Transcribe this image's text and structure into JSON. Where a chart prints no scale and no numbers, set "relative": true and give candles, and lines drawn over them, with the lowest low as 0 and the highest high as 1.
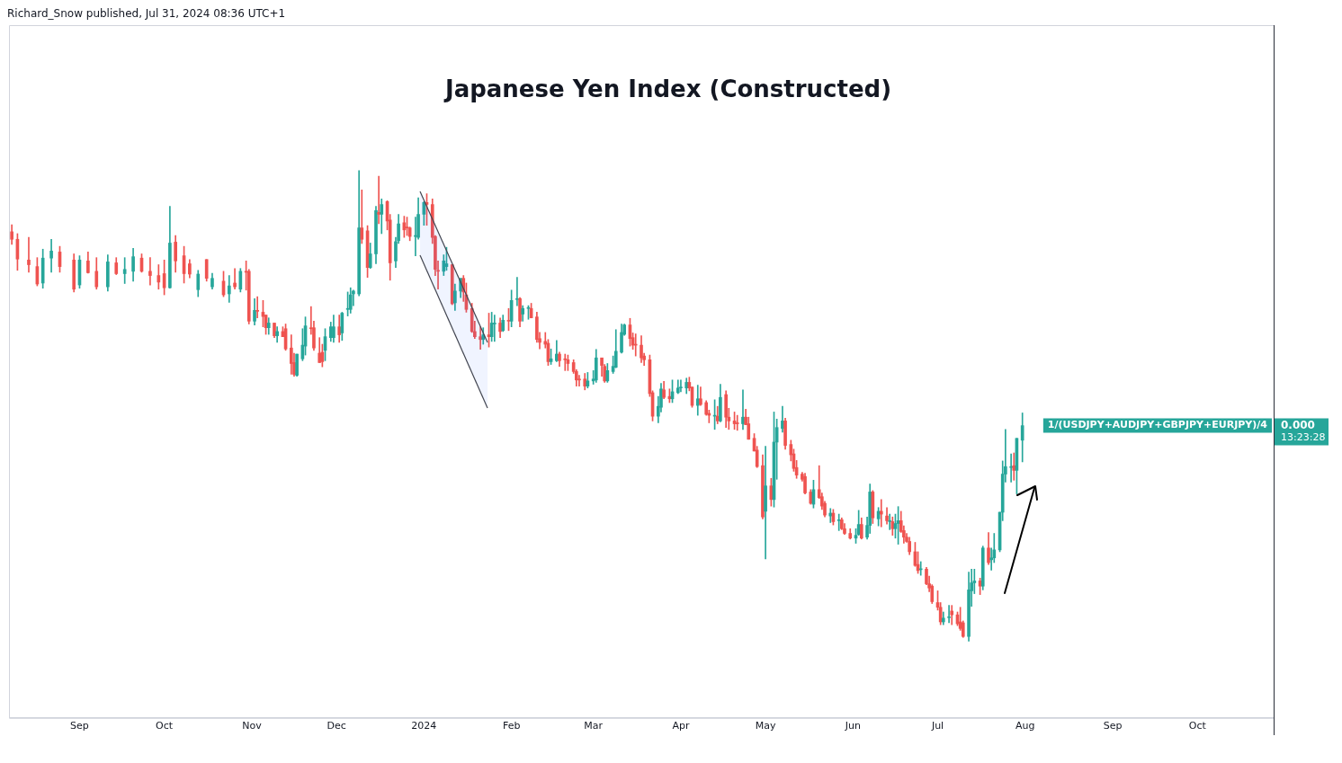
{
  "chart_data": {
    "type": "candlestick",
    "title": "Japanese Yen Index (Constructed)",
    "relative": true,
    "annotations": [
      "Richard_Snow published, Jul 31, 2024 08:36 UTC+1",
      "0.000",
      "13:23:28"
    ],
    "xlim": [
      "2023-08-07",
      "2024-10-28"
    ],
    "xticks": [
      {
        "value": "2023-09-01",
        "label": "Sep"
      },
      {
        "value": "2023-10-01",
        "label": "Oct"
      },
      {
        "value": "2023-11-01",
        "label": "Nov"
      },
      {
        "value": "2023-12-01",
        "label": "Dec"
      },
      {
        "value": "2024-01-01",
        "label": "2024"
      },
      {
        "value": "2024-02-01",
        "label": "Feb"
      },
      {
        "value": "2024-03-01",
        "label": "Mar"
      },
      {
        "value": "2024-04-01",
        "label": "Apr"
      },
      {
        "value": "2024-05-01",
        "label": "May"
      },
      {
        "value": "2024-06-01",
        "label": "Jun"
      },
      {
        "value": "2024-07-01",
        "label": "Jul"
      },
      {
        "value": "2024-08-01",
        "label": "Aug"
      },
      {
        "value": "2024-09-01",
        "label": "Sep"
      },
      {
        "value": "2024-10-01",
        "label": "Oct"
      }
    ],
    "x": [
      "2023-08-08",
      "2023-08-10",
      "2023-08-14",
      "2023-08-17",
      "2023-08-19",
      "2023-08-22",
      "2023-08-25",
      "2023-08-30",
      "2023-09-01",
      "2023-09-04",
      "2023-09-07",
      "2023-09-11",
      "2023-09-14",
      "2023-09-17",
      "2023-09-20",
      "2023-09-23",
      "2023-09-26",
      "2023-09-29",
      "2023-10-01",
      "2023-10-03",
      "2023-10-05",
      "2023-10-08",
      "2023-10-10",
      "2023-10-13",
      "2023-10-16",
      "2023-10-18",
      "2023-10-22",
      "2023-10-24",
      "2023-10-26",
      "2023-10-28",
      "2023-10-30",
      "2023-10-31",
      "2023-11-02",
      "2023-11-03",
      "2023-11-05",
      "2023-11-06",
      "2023-11-07",
      "2023-11-09",
      "2023-11-10",
      "2023-11-12",
      "2023-11-13",
      "2023-11-15",
      "2023-11-16",
      "2023-11-17",
      "2023-11-19",
      "2023-11-20",
      "2023-11-22",
      "2023-11-23",
      "2023-11-25",
      "2023-11-26",
      "2023-11-27",
      "2023-11-29",
      "2023-11-30",
      "2023-12-02",
      "2023-12-03",
      "2023-12-05",
      "2023-12-06",
      "2023-12-07",
      "2023-12-09",
      "2023-12-10",
      "2023-12-12",
      "2023-12-13",
      "2023-12-15",
      "2023-12-16",
      "2023-12-17",
      "2023-12-19",
      "2023-12-20",
      "2023-12-22",
      "2023-12-23",
      "2023-12-25",
      "2023-12-26",
      "2023-12-27",
      "2023-12-29",
      "2023-12-30",
      "2024-01-01",
      "2024-01-02",
      "2024-01-04",
      "2024-01-05",
      "2024-01-06",
      "2024-01-08",
      "2024-01-09",
      "2024-01-11",
      "2024-01-12",
      "2024-01-14",
      "2024-01-15",
      "2024-01-16",
      "2024-01-18",
      "2024-01-19",
      "2024-01-21",
      "2024-01-22",
      "2024-01-24",
      "2024-01-25",
      "2024-01-26",
      "2024-01-28",
      "2024-01-29",
      "2024-01-31",
      "2024-02-01",
      "2024-02-03",
      "2024-02-04",
      "2024-02-05",
      "2024-02-07",
      "2024-02-08",
      "2024-02-10",
      "2024-02-11",
      "2024-02-13",
      "2024-02-14",
      "2024-02-15",
      "2024-02-17",
      "2024-02-18",
      "2024-02-20",
      "2024-02-21",
      "2024-02-23",
      "2024-02-24",
      "2024-02-25",
      "2024-02-27",
      "2024-02-28",
      "2024-03-01",
      "2024-03-02",
      "2024-03-04",
      "2024-03-05",
      "2024-03-06",
      "2024-03-08",
      "2024-03-09",
      "2024-03-11",
      "2024-03-12",
      "2024-03-14",
      "2024-03-15",
      "2024-03-16",
      "2024-03-18",
      "2024-03-19",
      "2024-03-21",
      "2024-03-22",
      "2024-03-24",
      "2024-03-25",
      "2024-03-26",
      "2024-03-28",
      "2024-03-29",
      "2024-03-31",
      "2024-04-01",
      "2024-04-03",
      "2024-04-04",
      "2024-04-05",
      "2024-04-07",
      "2024-04-08",
      "2024-04-10",
      "2024-04-11",
      "2024-04-13",
      "2024-04-14",
      "2024-04-15",
      "2024-04-17",
      "2024-04-18",
      "2024-04-20",
      "2024-04-21",
      "2024-04-23",
      "2024-04-24",
      "2024-04-25",
      "2024-04-27",
      "2024-04-28",
      "2024-04-30",
      "2024-05-01",
      "2024-05-03",
      "2024-05-04",
      "2024-05-05",
      "2024-05-07",
      "2024-05-08",
      "2024-05-10",
      "2024-05-11",
      "2024-05-12",
      "2024-05-14",
      "2024-05-15",
      "2024-05-17",
      "2024-05-18",
      "2024-05-20",
      "2024-05-21",
      "2024-05-22",
      "2024-05-24",
      "2024-05-25",
      "2024-05-27",
      "2024-05-28",
      "2024-05-29",
      "2024-05-31",
      "2024-06-02",
      "2024-06-03",
      "2024-06-04",
      "2024-06-06",
      "2024-06-07",
      "2024-06-08",
      "2024-06-10",
      "2024-06-11",
      "2024-06-13",
      "2024-06-14",
      "2024-06-15",
      "2024-06-16",
      "2024-06-17",
      "2024-06-18",
      "2024-06-19",
      "2024-06-20",
      "2024-06-21",
      "2024-06-23",
      "2024-06-24",
      "2024-06-25",
      "2024-06-27",
      "2024-06-28",
      "2024-06-29",
      "2024-07-01",
      "2024-07-02",
      "2024-07-03",
      "2024-07-05",
      "2024-07-06",
      "2024-07-08",
      "2024-07-09",
      "2024-07-10",
      "2024-07-12",
      "2024-07-13",
      "2024-07-14",
      "2024-07-16",
      "2024-07-17",
      "2024-07-19",
      "2024-07-20",
      "2024-07-21",
      "2024-07-23",
      "2024-07-24",
      "2024-07-25",
      "2024-07-27",
      "2024-07-28",
      "2024-07-29",
      "2024-07-31"
    ],
    "series": [
      {
        "name": "1/(USDJPY+AUDJPY+GBPJPY+EURJPY)/4",
        "ohlc": [
          [
            0.87,
            0.885,
            0.843,
            0.854
          ],
          [
            0.854,
            0.866,
            0.788,
            0.812
          ],
          [
            0.81,
            0.858,
            0.784,
            0.8
          ],
          [
            0.796,
            0.815,
            0.755,
            0.759
          ],
          [
            0.761,
            0.833,
            0.75,
            0.814
          ],
          [
            0.814,
            0.854,
            0.784,
            0.829
          ],
          [
            0.827,
            0.839,
            0.784,
            0.796
          ],
          [
            0.81,
            0.823,
            0.742,
            0.748
          ],
          [
            0.757,
            0.819,
            0.75,
            0.81
          ],
          [
            0.808,
            0.827,
            0.782,
            0.783
          ],
          [
            0.786,
            0.815,
            0.748,
            0.753
          ],
          [
            0.753,
            0.821,
            0.744,
            0.806
          ],
          [
            0.804,
            0.815,
            0.779,
            0.781
          ],
          [
            0.781,
            0.815,
            0.76,
            0.79
          ],
          [
            0.786,
            0.835,
            0.765,
            0.817
          ],
          [
            0.814,
            0.823,
            0.784,
            0.786
          ],
          [
            0.786,
            0.815,
            0.757,
            0.777
          ],
          [
            0.777,
            0.8,
            0.748,
            0.763
          ],
          [
            0.781,
            0.81,
            0.736,
            0.751
          ],
          [
            0.751,
            0.924,
            0.75,
            0.846
          ],
          [
            0.848,
            0.862,
            0.784,
            0.808
          ],
          [
            0.819,
            0.839,
            0.761,
            0.781
          ],
          [
            0.802,
            0.811,
            0.772,
            0.78
          ],
          [
            0.747,
            0.788,
            0.732,
            0.78
          ],
          [
            0.811,
            0.811,
            0.765,
            0.771
          ],
          [
            0.753,
            0.782,
            0.748,
            0.771
          ],
          [
            0.765,
            0.786,
            0.732,
            0.736
          ],
          [
            0.738,
            0.777,
            0.72,
            0.755
          ],
          [
            0.761,
            0.792,
            0.748,
            0.753
          ],
          [
            0.748,
            0.792,
            0.742,
            0.786
          ],
          [
            0.786,
            0.808,
            0.746,
            0.784
          ],
          [
            0.786,
            0.79,
            0.674,
            0.68
          ],
          [
            0.68,
            0.728,
            0.672,
            0.703
          ],
          [
            0.703,
            0.732,
            0.687,
            0.701
          ],
          [
            0.699,
            0.724,
            0.668,
            0.69
          ],
          [
            0.693,
            0.693,
            0.652,
            0.666
          ],
          [
            0.666,
            0.687,
            0.652,
            0.676
          ],
          [
            0.676,
            0.676,
            0.645,
            0.649
          ],
          [
            0.649,
            0.668,
            0.635,
            0.658
          ],
          [
            0.658,
            0.668,
            0.647,
            0.647
          ],
          [
            0.664,
            0.674,
            0.618,
            0.621
          ],
          [
            0.623,
            0.651,
            0.567,
            0.59
          ],
          [
            0.592,
            0.612,
            0.563,
            0.567
          ],
          [
            0.565,
            0.61,
            0.563,
            0.61
          ],
          [
            0.6,
            0.664,
            0.596,
            0.629
          ],
          [
            0.627,
            0.689,
            0.608,
            0.67
          ],
          [
            0.666,
            0.711,
            0.652,
            0.664
          ],
          [
            0.666,
            0.68,
            0.618,
            0.623
          ],
          [
            0.612,
            0.645,
            0.592,
            0.592
          ],
          [
            0.614,
            0.631,
            0.583,
            0.594
          ],
          [
            0.618,
            0.664,
            0.596,
            0.647
          ],
          [
            0.645,
            0.678,
            0.637,
            0.668
          ],
          [
            0.645,
            0.693,
            0.635,
            0.668
          ],
          [
            0.668,
            0.693,
            0.635,
            0.651
          ],
          [
            0.655,
            0.699,
            0.639,
            0.697
          ],
          [
            0.705,
            0.742,
            0.691,
            0.707
          ],
          [
            0.705,
            0.751,
            0.697,
            0.736
          ],
          [
            0.738,
            0.746,
            0.713,
            0.744
          ],
          [
            0.738,
            1.0,
            0.734,
            0.878
          ],
          [
            0.878,
            0.959,
            0.845,
            0.854
          ],
          [
            0.872,
            0.883,
            0.773,
            0.794
          ],
          [
            0.794,
            0.846,
            0.792,
            0.823
          ],
          [
            0.823,
            0.924,
            0.802,
            0.915
          ],
          [
            0.911,
            0.988,
            0.887,
            0.907
          ],
          [
            0.907,
            0.94,
            0.866,
            0.928
          ],
          [
            0.934,
            0.936,
            0.874,
            0.893
          ],
          [
            0.895,
            0.907,
            0.767,
            0.804
          ],
          [
            0.808,
            0.858,
            0.794,
            0.849
          ],
          [
            0.851,
            0.907,
            0.845,
            0.887
          ],
          [
            0.889,
            0.903,
            0.858,
            0.874
          ],
          [
            0.88,
            0.901,
            0.862,
            0.878
          ],
          [
            0.878,
            0.88,
            0.851,
            0.86
          ],
          [
            0.86,
            0.901,
            0.819,
            0.862
          ],
          [
            0.858,
            0.942,
            0.854,
            0.907
          ],
          [
            0.907,
            0.934,
            0.884,
            0.932
          ],
          [
            0.932,
            0.951,
            0.884,
            0.928
          ],
          [
            0.928,
            0.94,
            0.845,
            0.858
          ],
          [
            0.86,
            0.862,
            0.777,
            0.79
          ],
          [
            0.788,
            0.808,
            0.748,
            0.786
          ],
          [
            0.786,
            0.821,
            0.777,
            0.808
          ],
          [
            0.796,
            0.837,
            0.788,
            0.802
          ],
          [
            0.8,
            0.8,
            0.715,
            0.717
          ],
          [
            0.719,
            0.759,
            0.703,
            0.744
          ],
          [
            0.744,
            0.771,
            0.73,
            0.771
          ],
          [
            0.771,
            0.777,
            0.722,
            0.742
          ],
          [
            0.736,
            0.761,
            0.699,
            0.705
          ],
          [
            0.707,
            0.718,
            0.656,
            0.658
          ],
          [
            0.658,
            0.68,
            0.643,
            0.647
          ],
          [
            0.647,
            0.668,
            0.62,
            0.641
          ],
          [
            0.641,
            0.666,
            0.631,
            0.651
          ],
          [
            0.651,
            0.697,
            0.625,
            0.647
          ],
          [
            0.647,
            0.699,
            0.637,
            0.676
          ],
          [
            0.674,
            0.693,
            0.637,
            0.676
          ],
          [
            0.676,
            0.687,
            0.645,
            0.658
          ],
          [
            0.66,
            0.693,
            0.658,
            0.682
          ],
          [
            0.682,
            0.707,
            0.66,
            0.68
          ],
          [
            0.68,
            0.746,
            0.668,
            0.724
          ],
          [
            0.726,
            0.773,
            0.713,
            0.728
          ],
          [
            0.728,
            0.73,
            0.668,
            0.68
          ],
          [
            0.695,
            0.713,
            0.68,
            0.707
          ],
          [
            0.707,
            0.713,
            0.684,
            0.709
          ],
          [
            0.707,
            0.718,
            0.687,
            0.687
          ],
          [
            0.689,
            0.699,
            0.635,
            0.641
          ],
          [
            0.643,
            0.656,
            0.621,
            0.635
          ],
          [
            0.637,
            0.656,
            0.623,
            0.631
          ],
          [
            0.633,
            0.641,
            0.586,
            0.594
          ],
          [
            0.594,
            0.621,
            0.588,
            0.6
          ],
          [
            0.596,
            0.639,
            0.594,
            0.61
          ],
          [
            0.61,
            0.614,
            0.584,
            0.596
          ],
          [
            0.6,
            0.61,
            0.575,
            0.598
          ],
          [
            0.598,
            0.608,
            0.575,
            0.59
          ],
          [
            0.592,
            0.598,
            0.569,
            0.573
          ],
          [
            0.573,
            0.577,
            0.542,
            0.555
          ],
          [
            0.557,
            0.565,
            0.542,
            0.555
          ],
          [
            0.557,
            0.569,
            0.534,
            0.542
          ],
          [
            0.542,
            0.571,
            0.538,
            0.553
          ],
          [
            0.553,
            0.575,
            0.546,
            0.557
          ],
          [
            0.555,
            0.62,
            0.55,
            0.602
          ],
          [
            0.602,
            0.602,
            0.563,
            0.586
          ],
          [
            0.584,
            0.588,
            0.55,
            0.553
          ],
          [
            0.553,
            0.59,
            0.55,
            0.575
          ],
          [
            0.573,
            0.606,
            0.569,
            0.584
          ],
          [
            0.582,
            0.662,
            0.581,
            0.616
          ],
          [
            0.614,
            0.674,
            0.612,
            0.656
          ],
          [
            0.652,
            0.674,
            0.65,
            0.672
          ],
          [
            0.672,
            0.686,
            0.627,
            0.643
          ],
          [
            0.645,
            0.655,
            0.62,
            0.629
          ],
          [
            0.631,
            0.653,
            0.606,
            0.629
          ],
          [
            0.629,
            0.649,
            0.592,
            0.602
          ],
          [
            0.606,
            0.612,
            0.586,
            0.598
          ],
          [
            0.598,
            0.608,
            0.52,
            0.526
          ],
          [
            0.528,
            0.532,
            0.468,
            0.478
          ],
          [
            0.478,
            0.52,
            0.464,
            0.499
          ],
          [
            0.497,
            0.548,
            0.487,
            0.536
          ],
          [
            0.534,
            0.552,
            0.515,
            0.518
          ],
          [
            0.52,
            0.536,
            0.507,
            0.515
          ],
          [
            0.515,
            0.555,
            0.507,
            0.53
          ],
          [
            0.528,
            0.555,
            0.526,
            0.538
          ],
          [
            0.54,
            0.555,
            0.53,
            0.54
          ],
          [
            0.538,
            0.559,
            0.526,
            0.55
          ],
          [
            0.55,
            0.561,
            0.532,
            0.538
          ],
          [
            0.54,
            0.54,
            0.497,
            0.501
          ],
          [
            0.501,
            0.544,
            0.48,
            0.515
          ],
          [
            0.515,
            0.54,
            0.501,
            0.503
          ],
          [
            0.507,
            0.511,
            0.48,
            0.482
          ],
          [
            0.484,
            0.491,
            0.464,
            0.48
          ],
          [
            0.48,
            0.513,
            0.45,
            0.48
          ],
          [
            0.478,
            0.499,
            0.462,
            0.468
          ],
          [
            0.468,
            0.546,
            0.466,
            0.518
          ],
          [
            0.524,
            0.532,
            0.454,
            0.476
          ],
          [
            0.476,
            0.495,
            0.45,
            0.468
          ],
          [
            0.468,
            0.487,
            0.45,
            0.462
          ],
          [
            0.464,
            0.48,
            0.448,
            0.462
          ],
          [
            0.462,
            0.534,
            0.45,
            0.476
          ],
          [
            0.476,
            0.493,
            0.46,
            0.46
          ],
          [
            0.462,
            0.476,
            0.429,
            0.429
          ],
          [
            0.431,
            0.441,
            0.404,
            0.404
          ],
          [
            0.406,
            0.414,
            0.369,
            0.371
          ],
          [
            0.373,
            0.396,
            0.26,
            0.264
          ],
          [
            0.276,
            0.414,
            0.175,
            0.33
          ],
          [
            0.33,
            0.346,
            0.287,
            0.301
          ],
          [
            0.301,
            0.487,
            0.285,
            0.423
          ],
          [
            0.423,
            0.472,
            0.344,
            0.454
          ],
          [
            0.452,
            0.499,
            0.444,
            0.468
          ],
          [
            0.468,
            0.474,
            0.408,
            0.416
          ],
          [
            0.418,
            0.427,
            0.383,
            0.396
          ],
          [
            0.398,
            0.408,
            0.361,
            0.367
          ],
          [
            0.369,
            0.384,
            0.346,
            0.353
          ],
          [
            0.355,
            0.359,
            0.34,
            0.344
          ],
          [
            0.35,
            0.357,
            0.313,
            0.315
          ],
          [
            0.317,
            0.322,
            0.291,
            0.293
          ],
          [
            0.291,
            0.342,
            0.283,
            0.322
          ],
          [
            0.322,
            0.373,
            0.303,
            0.305
          ],
          [
            0.307,
            0.315,
            0.28,
            0.287
          ],
          [
            0.293,
            0.297,
            0.264,
            0.268
          ],
          [
            0.266,
            0.282,
            0.252,
            0.272
          ],
          [
            0.272,
            0.28,
            0.247,
            0.254
          ],
          [
            0.258,
            0.27,
            0.235,
            0.258
          ],
          [
            0.258,
            0.262,
            0.237,
            0.239
          ],
          [
            0.239,
            0.25,
            0.227,
            0.229
          ],
          [
            0.229,
            0.239,
            0.217,
            0.219
          ],
          [
            0.219,
            0.239,
            0.208,
            0.225
          ],
          [
            0.227,
            0.278,
            0.225,
            0.248
          ],
          [
            0.248,
            0.262,
            0.217,
            0.219
          ],
          [
            0.221,
            0.264,
            0.217,
            0.246
          ],
          [
            0.246,
            0.334,
            0.229,
            0.317
          ],
          [
            0.317,
            0.32,
            0.25,
            0.262
          ],
          [
            0.26,
            0.284,
            0.245,
            0.276
          ],
          [
            0.276,
            0.301,
            0.243,
            0.27
          ],
          [
            0.266,
            0.284,
            0.249,
            0.256
          ],
          [
            0.256,
            0.27,
            0.237,
            0.256
          ],
          [
            0.254,
            0.264,
            0.225,
            0.239
          ],
          [
            0.239,
            0.27,
            0.219,
            0.25
          ],
          [
            0.25,
            0.286,
            0.206,
            0.256
          ],
          [
            0.256,
            0.276,
            0.231,
            0.233
          ],
          [
            0.235,
            0.245,
            0.208,
            0.221
          ],
          [
            0.221,
            0.229,
            0.21,
            0.212
          ],
          [
            0.212,
            0.221,
            0.184,
            0.19
          ],
          [
            0.19,
            0.21,
            0.159,
            0.161
          ],
          [
            0.163,
            0.19,
            0.144,
            0.15
          ],
          [
            0.152,
            0.169,
            0.14,
            0.153
          ],
          [
            0.153,
            0.157,
            0.12,
            0.122
          ],
          [
            0.122,
            0.138,
            0.105,
            0.113
          ],
          [
            0.117,
            0.12,
            0.08,
            0.084
          ],
          [
            0.082,
            0.107,
            0.066,
            0.072
          ],
          [
            0.072,
            0.082,
            0.035,
            0.041
          ],
          [
            0.041,
            0.062,
            0.035,
            0.049
          ],
          [
            0.05,
            0.076,
            0.039,
            0.051
          ],
          [
            0.064,
            0.076,
            0.035,
            0.056
          ],
          [
            0.056,
            0.062,
            0.033,
            0.037
          ],
          [
            0.041,
            0.072,
            0.023,
            0.027
          ],
          [
            0.039,
            0.043,
            0.008,
            0.01
          ],
          [
            0.01,
            0.147,
            0.0,
            0.109
          ],
          [
            0.107,
            0.153,
            0.074,
            0.124
          ],
          [
            0.124,
            0.153,
            0.101,
            0.128
          ],
          [
            0.128,
            0.134,
            0.099,
            0.117
          ],
          [
            0.117,
            0.202,
            0.109,
            0.198
          ],
          [
            0.198,
            0.231,
            0.163,
            0.167
          ],
          [
            0.173,
            0.198,
            0.151,
            0.177
          ],
          [
            0.177,
            0.229,
            0.167,
            0.194
          ],
          [
            0.194,
            0.274,
            0.19,
            0.274
          ],
          [
            0.274,
            0.383,
            0.256,
            0.355
          ],
          [
            0.355,
            0.45,
            0.338,
            0.371
          ],
          [
            0.369,
            0.398,
            0.338,
            0.371
          ],
          [
            0.373,
            0.4,
            0.342,
            0.363
          ],
          [
            0.363,
            0.431,
            0.313,
            0.431
          ],
          [
            0.427,
            0.485,
            0.381,
            0.458
          ]
        ]
      }
    ]
  }
}
